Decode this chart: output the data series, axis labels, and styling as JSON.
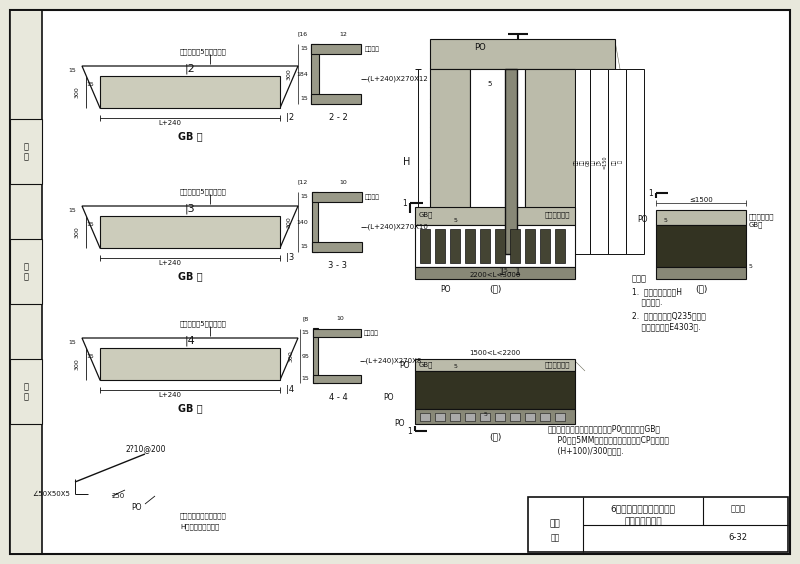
{
  "bg_color": "#e8e8dc",
  "line_color": "#111111",
  "title_main": "6级人防工程平时出入口及",
  "title_sub": "孔口临战封堵图",
  "page_num": "6-32",
  "note_lines": [
    "说明：",
    "1.  适用时应注明，H",
    "    实际尺寸.",
    "2.  封堵型钢采用Q235号钢，",
    "    焊条尺寸采用E4303型."
  ],
  "bottom_note1": "注：门孔二侧与上楣构预型角钢P0；封堵钢板GB与",
  "bottom_note2": "    P0板以5MM整角钢固定；封堵钢板CP整备宽为",
  "bottom_note3": "    (H+100)/300整数值.",
  "left_labels": [
    "图\n名",
    "校\n对",
    "设\n计"
  ]
}
